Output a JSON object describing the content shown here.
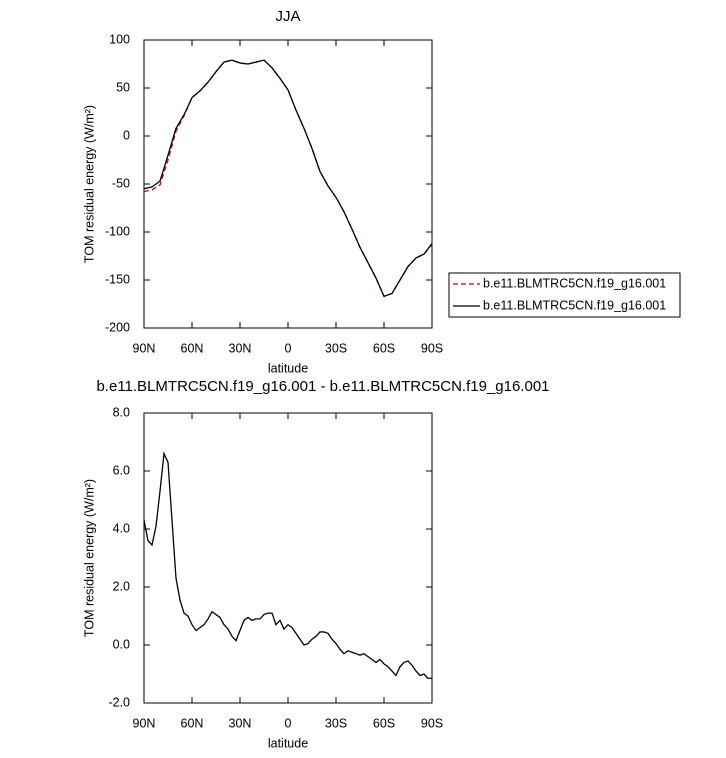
{
  "chart_data": [
    {
      "type": "line",
      "title": "JJA",
      "xlabel": "latitude",
      "ylabel": "TOM residual energy (W/m²)",
      "x": [
        90,
        85,
        80,
        75,
        70,
        65,
        60,
        55,
        50,
        45,
        40,
        35,
        30,
        25,
        20,
        15,
        10,
        5,
        0,
        -5,
        -10,
        -15,
        -20,
        -25,
        -30,
        -35,
        -40,
        -45,
        -50,
        -55,
        -60,
        -65,
        -70,
        -75,
        -80,
        -85,
        -90
      ],
      "series": [
        {
          "name": "b.e11.BLMTRC5CN.f19_g16.001",
          "color": "#cc0000",
          "linestyle": "dashed",
          "values": [
            -58,
            -56,
            -51,
            -25,
            5,
            21,
            40,
            47,
            56,
            67,
            77,
            79,
            76,
            75,
            77,
            79,
            71,
            60,
            48,
            27,
            8,
            -13,
            -37,
            -52,
            -64,
            -79,
            -97,
            -116,
            -132,
            -148,
            -167,
            -164,
            -150,
            -136,
            -127,
            -123,
            -113
          ]
        },
        {
          "name": "b.e11.BLMTRC5CN.f19_g16.001",
          "color": "#000000",
          "linestyle": "solid",
          "values": [
            -55,
            -53,
            -47,
            -20,
            8,
            22,
            40,
            47,
            56,
            67,
            77,
            79,
            76,
            75,
            77,
            79,
            71,
            60,
            48,
            27,
            8,
            -13,
            -37,
            -52,
            -64,
            -79,
            -97,
            -116,
            -132,
            -148,
            -167,
            -164,
            -150,
            -136,
            -127,
            -123,
            -112
          ]
        }
      ],
      "xlim": [
        90,
        -90
      ],
      "xticks": [
        {
          "value": 90,
          "label": "90N"
        },
        {
          "value": 60,
          "label": "60N"
        },
        {
          "value": 30,
          "label": "30N"
        },
        0,
        {
          "value": -30,
          "label": "30S"
        },
        {
          "value": -60,
          "label": "60S"
        },
        {
          "value": -90,
          "label": "90S"
        }
      ],
      "ylim": [
        -200,
        100
      ],
      "yticks": [
        -200,
        -150,
        -100,
        -50,
        0,
        50,
        100
      ],
      "legend": "right"
    },
    {
      "type": "line",
      "title": "b.e11.BLMTRC5CN.f19_g16.001 - b.e11.BLMTRC5CN.f19_g16.001",
      "xlabel": "latitude",
      "ylabel": "TOM residual energy (W/m²)",
      "x": [
        90,
        87.5,
        85,
        82.5,
        80,
        77.5,
        75,
        72.5,
        70,
        67.5,
        65,
        62.5,
        60,
        57.5,
        55,
        52.5,
        50,
        47.5,
        45,
        42.5,
        40,
        37.5,
        35,
        32.5,
        30,
        27.5,
        25,
        22.5,
        20,
        17.5,
        15,
        12.5,
        10,
        7.5,
        5,
        2.5,
        0,
        -2.5,
        -5,
        -7.5,
        -10,
        -12.5,
        -15,
        -17.5,
        -20,
        -22.5,
        -25,
        -27.5,
        -30,
        -32.5,
        -35,
        -37.5,
        -40,
        -42.5,
        -45,
        -47.5,
        -50,
        -52.5,
        -55,
        -57.5,
        -60,
        -62.5,
        -65,
        -67.5,
        -70,
        -72.5,
        -75,
        -77.5,
        -80,
        -82.5,
        -85,
        -87.5,
        -90
      ],
      "series": [
        {
          "color": "#000000",
          "linestyle": "solid",
          "values": [
            4.3,
            3.6,
            3.45,
            4.1,
            5.3,
            6.6,
            6.3,
            4.3,
            2.3,
            1.55,
            1.1,
            1.0,
            0.7,
            0.5,
            0.6,
            0.7,
            0.9,
            1.15,
            1.05,
            0.95,
            0.7,
            0.55,
            0.3,
            0.15,
            0.5,
            0.85,
            0.95,
            0.85,
            0.9,
            0.9,
            1.05,
            1.1,
            1.1,
            0.7,
            0.85,
            0.55,
            0.7,
            0.6,
            0.4,
            0.2,
            0.0,
            0.05,
            0.2,
            0.3,
            0.45,
            0.45,
            0.4,
            0.2,
            0.05,
            -0.15,
            -0.3,
            -0.2,
            -0.25,
            -0.3,
            -0.35,
            -0.3,
            -0.4,
            -0.5,
            -0.6,
            -0.5,
            -0.65,
            -0.75,
            -0.9,
            -1.05,
            -0.75,
            -0.6,
            -0.55,
            -0.7,
            -0.9,
            -1.05,
            -1.0,
            -1.15,
            -1.15
          ]
        }
      ],
      "xlim": [
        90,
        -90
      ],
      "xticks": [
        {
          "value": 90,
          "label": "90N"
        },
        {
          "value": 60,
          "label": "60N"
        },
        {
          "value": 30,
          "label": "30N"
        },
        0,
        {
          "value": -30,
          "label": "30S"
        },
        {
          "value": -60,
          "label": "60S"
        },
        {
          "value": -90,
          "label": "90S"
        }
      ],
      "ylim": [
        -2,
        8
      ],
      "yticks": [
        {
          "value": -2,
          "label": "-2.0"
        },
        {
          "value": 0,
          "label": "0.0"
        },
        {
          "value": 2,
          "label": "2.0"
        },
        {
          "value": 4,
          "label": "4.0"
        },
        {
          "value": 6,
          "label": "6.0"
        },
        {
          "value": 8,
          "label": "8.0"
        }
      ]
    }
  ]
}
